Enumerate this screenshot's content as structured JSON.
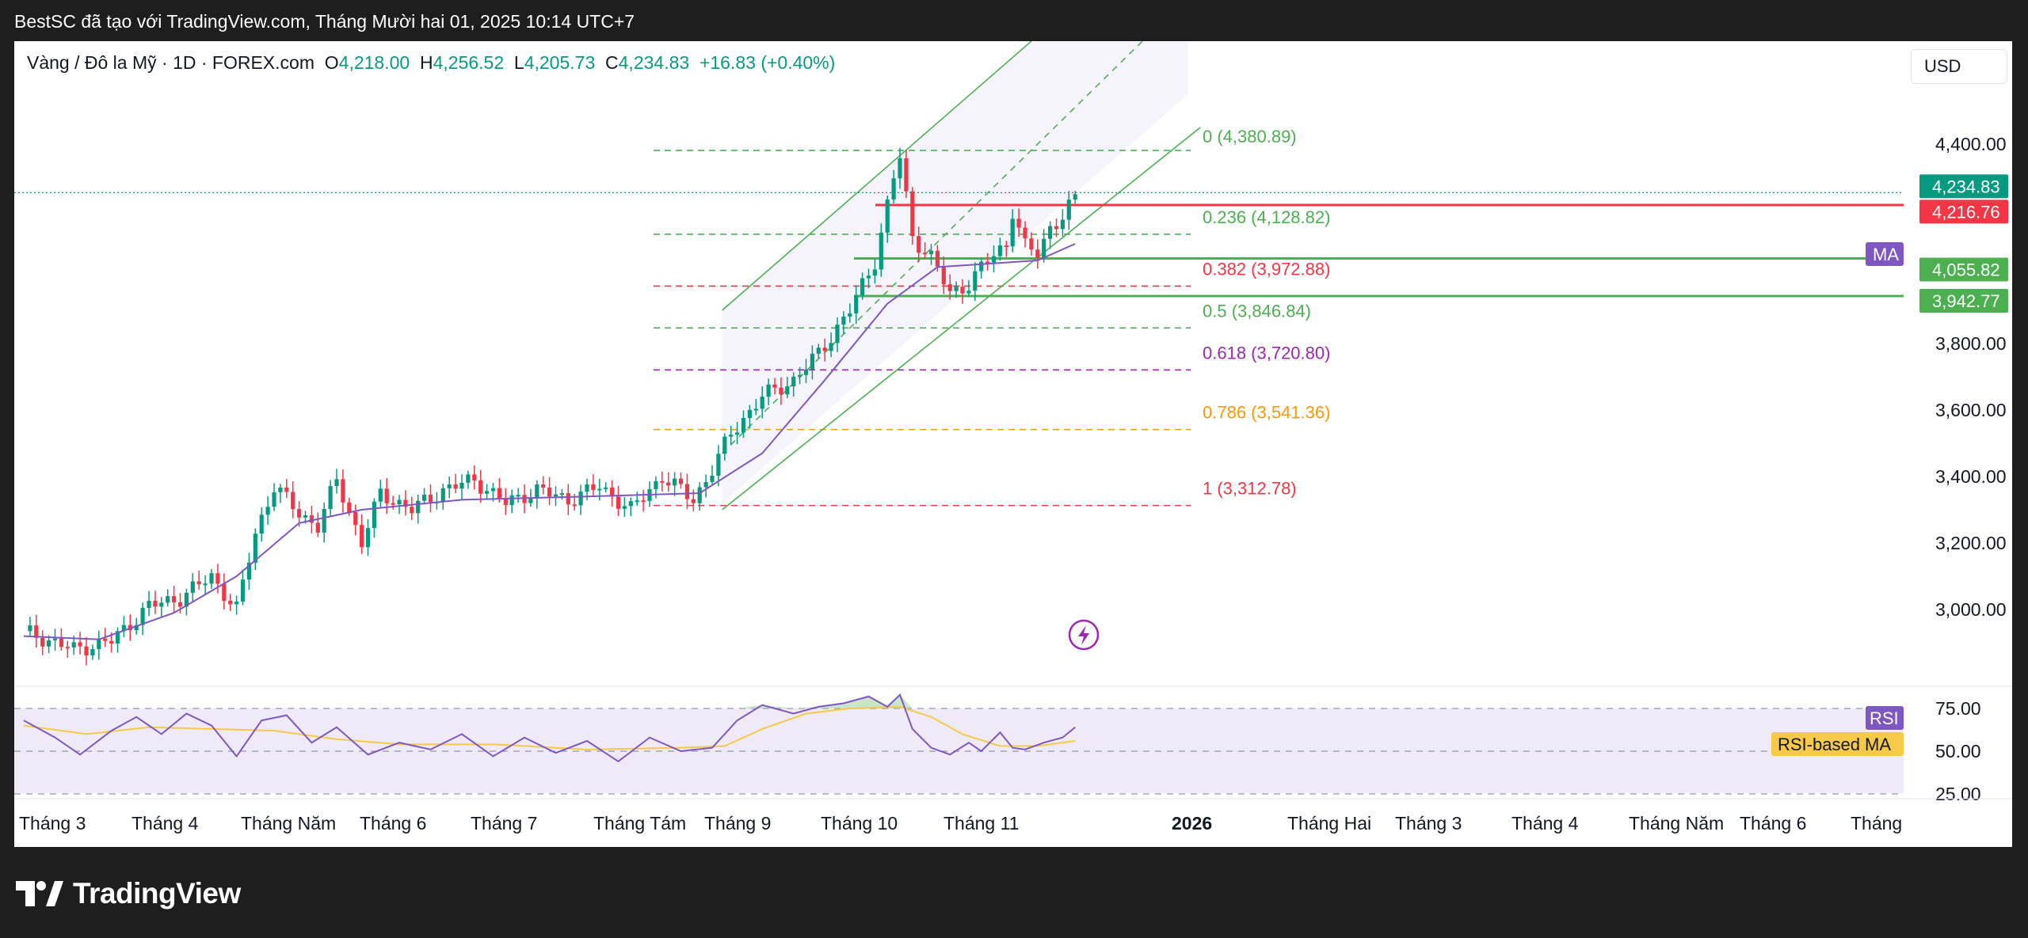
{
  "header": {
    "attribution": "BestSC đã tạo với TradingView.com, Tháng Mười hai 01, 2025 10:14 UTC+7"
  },
  "legend": {
    "symbol": "Vàng / Đô la Mỹ · 1D · FOREX.com",
    "open_label": "O",
    "open": "4,218.00",
    "high_label": "H",
    "high": "4,256.52",
    "low_label": "L",
    "low": "4,205.73",
    "close_label": "C",
    "close": "4,234.83",
    "change": "+16.83 (+0.40%)"
  },
  "currency": "USD",
  "footer": {
    "brand": "TradingView"
  },
  "colors": {
    "up": "#089981",
    "down": "#f23645",
    "ma": "#7e57c2",
    "rsi": "#7e57c2",
    "rsi_ma": "#f7c948",
    "fib_green": "#4caf50",
    "fib_red": "#f23645",
    "fib_purple": "#9c27b0",
    "fib_orange": "#ff9800",
    "channel": "#4caf50"
  },
  "chart_data": {
    "type": "candlestick",
    "symbol": "XAUUSD",
    "timeframe": "1D",
    "ylim": [
      2800,
      4560
    ],
    "y_ticks": [
      "4,400.00",
      "3,800.00",
      "3,600.00",
      "3,400.00",
      "3,200.00",
      "3,000.00"
    ],
    "x_ticks": [
      "Tháng 3",
      "Tháng 4",
      "Tháng Năm",
      "Tháng 6",
      "Tháng 7",
      "Tháng Tám",
      "Tháng 9",
      "Tháng 10",
      "Tháng 11",
      "2026",
      "Tháng Hai",
      "Tháng 3",
      "Tháng 4",
      "Tháng Năm",
      "Tháng 6",
      "Tháng"
    ],
    "price_path": [
      {
        "t": 0,
        "p": 2935
      },
      {
        "t": 8,
        "p": 2880
      },
      {
        "t": 14,
        "p": 2905
      },
      {
        "t": 20,
        "p": 3010
      },
      {
        "t": 25,
        "p": 3035
      },
      {
        "t": 30,
        "p": 3100
      },
      {
        "t": 34,
        "p": 3000
      },
      {
        "t": 37,
        "p": 3230
      },
      {
        "t": 40,
        "p": 3370
      },
      {
        "t": 44,
        "p": 3290
      },
      {
        "t": 47,
        "p": 3250
      },
      {
        "t": 50,
        "p": 3390
      },
      {
        "t": 54,
        "p": 3200
      },
      {
        "t": 57,
        "p": 3350
      },
      {
        "t": 62,
        "p": 3300
      },
      {
        "t": 67,
        "p": 3360
      },
      {
        "t": 72,
        "p": 3390
      },
      {
        "t": 77,
        "p": 3320
      },
      {
        "t": 82,
        "p": 3360
      },
      {
        "t": 87,
        "p": 3330
      },
      {
        "t": 92,
        "p": 3370
      },
      {
        "t": 97,
        "p": 3300
      },
      {
        "t": 102,
        "p": 3400
      },
      {
        "t": 107,
        "p": 3330
      },
      {
        "t": 110,
        "p": 3420
      },
      {
        "t": 113,
        "p": 3530
      },
      {
        "t": 118,
        "p": 3640
      },
      {
        "t": 123,
        "p": 3690
      },
      {
        "t": 127,
        "p": 3770
      },
      {
        "t": 132,
        "p": 3900
      },
      {
        "t": 136,
        "p": 4050
      },
      {
        "t": 139,
        "p": 4300
      },
      {
        "t": 140,
        "p": 4360
      },
      {
        "t": 142,
        "p": 4120
      },
      {
        "t": 145,
        "p": 4060
      },
      {
        "t": 148,
        "p": 3950
      },
      {
        "t": 151,
        "p": 3980
      },
      {
        "t": 154,
        "p": 4050
      },
      {
        "t": 157,
        "p": 4100
      },
      {
        "t": 158,
        "p": 4200
      },
      {
        "t": 160,
        "p": 4090
      },
      {
        "t": 162,
        "p": 4070
      },
      {
        "t": 164,
        "p": 4150
      },
      {
        "t": 166,
        "p": 4180
      },
      {
        "t": 168,
        "p": 4234.83
      }
    ],
    "moving_average": {
      "name": "MA",
      "values": [
        {
          "t": 0,
          "p": 2920
        },
        {
          "t": 12,
          "p": 2910
        },
        {
          "t": 24,
          "p": 2990
        },
        {
          "t": 34,
          "p": 3100
        },
        {
          "t": 44,
          "p": 3260
        },
        {
          "t": 54,
          "p": 3300
        },
        {
          "t": 70,
          "p": 3330
        },
        {
          "t": 90,
          "p": 3340
        },
        {
          "t": 108,
          "p": 3350
        },
        {
          "t": 118,
          "p": 3470
        },
        {
          "t": 128,
          "p": 3690
        },
        {
          "t": 138,
          "p": 3920
        },
        {
          "t": 146,
          "p": 4030
        },
        {
          "t": 154,
          "p": 4040
        },
        {
          "t": 162,
          "p": 4050
        },
        {
          "t": 168,
          "p": 4100
        }
      ]
    },
    "fibonacci": [
      {
        "level": "0",
        "price": 4380.89,
        "label": "0 (4,380.89)"
      },
      {
        "level": "0.236",
        "price": 4128.82,
        "label": "0.236 (4,128.82)"
      },
      {
        "level": "0.382",
        "price": 3972.88,
        "label": "0.382 (3,972.88)"
      },
      {
        "level": "0.5",
        "price": 3846.84,
        "label": "0.5 (3,846.84)"
      },
      {
        "level": "0.618",
        "price": 3720.8,
        "label": "0.618 (3,720.80)"
      },
      {
        "level": "0.786",
        "price": 3541.36,
        "label": "0.786 (3,541.36)"
      },
      {
        "level": "1",
        "price": 3312.78,
        "label": "1 (3,312.78)"
      }
    ],
    "horizontal_levels": [
      {
        "price": 4216.76,
        "label": "4,216.76",
        "color": "red"
      },
      {
        "price": 4055.82,
        "label": "4,055.82",
        "color": "green"
      },
      {
        "price": 3942.77,
        "label": "3,942.77",
        "color": "green"
      }
    ],
    "last_price_label": "4,234.83",
    "rsi": {
      "name": "RSI",
      "ma_name": "RSI-based MA",
      "ticks": [
        "75.00",
        "50.00",
        "25.00"
      ],
      "ylim": [
        25,
        90
      ],
      "values": [
        {
          "t": 0,
          "v": 68
        },
        {
          "t": 5,
          "v": 58
        },
        {
          "t": 9,
          "v": 48
        },
        {
          "t": 14,
          "v": 62
        },
        {
          "t": 18,
          "v": 70
        },
        {
          "t": 22,
          "v": 60
        },
        {
          "t": 26,
          "v": 72
        },
        {
          "t": 30,
          "v": 65
        },
        {
          "t": 34,
          "v": 47
        },
        {
          "t": 38,
          "v": 68
        },
        {
          "t": 42,
          "v": 71
        },
        {
          "t": 46,
          "v": 55
        },
        {
          "t": 50,
          "v": 64
        },
        {
          "t": 55,
          "v": 48
        },
        {
          "t": 60,
          "v": 55
        },
        {
          "t": 65,
          "v": 51
        },
        {
          "t": 70,
          "v": 60
        },
        {
          "t": 75,
          "v": 47
        },
        {
          "t": 80,
          "v": 58
        },
        {
          "t": 85,
          "v": 49
        },
        {
          "t": 90,
          "v": 56
        },
        {
          "t": 95,
          "v": 44
        },
        {
          "t": 100,
          "v": 58
        },
        {
          "t": 105,
          "v": 50
        },
        {
          "t": 110,
          "v": 52
        },
        {
          "t": 114,
          "v": 68
        },
        {
          "t": 118,
          "v": 77
        },
        {
          "t": 123,
          "v": 72
        },
        {
          "t": 127,
          "v": 76
        },
        {
          "t": 131,
          "v": 78
        },
        {
          "t": 135,
          "v": 82
        },
        {
          "t": 138,
          "v": 76
        },
        {
          "t": 140,
          "v": 83
        },
        {
          "t": 142,
          "v": 63
        },
        {
          "t": 145,
          "v": 52
        },
        {
          "t": 148,
          "v": 48
        },
        {
          "t": 151,
          "v": 55
        },
        {
          "t": 153,
          "v": 50
        },
        {
          "t": 156,
          "v": 61
        },
        {
          "t": 158,
          "v": 52
        },
        {
          "t": 160,
          "v": 51
        },
        {
          "t": 163,
          "v": 55
        },
        {
          "t": 166,
          "v": 58
        },
        {
          "t": 168,
          "v": 64
        }
      ],
      "ma_values": [
        {
          "t": 0,
          "v": 65
        },
        {
          "t": 10,
          "v": 60
        },
        {
          "t": 20,
          "v": 64
        },
        {
          "t": 30,
          "v": 63
        },
        {
          "t": 40,
          "v": 62
        },
        {
          "t": 50,
          "v": 57
        },
        {
          "t": 60,
          "v": 54
        },
        {
          "t": 75,
          "v": 54
        },
        {
          "t": 90,
          "v": 51
        },
        {
          "t": 105,
          "v": 52
        },
        {
          "t": 112,
          "v": 53
        },
        {
          "t": 118,
          "v": 63
        },
        {
          "t": 125,
          "v": 72
        },
        {
          "t": 132,
          "v": 75
        },
        {
          "t": 140,
          "v": 76
        },
        {
          "t": 145,
          "v": 70
        },
        {
          "t": 150,
          "v": 60
        },
        {
          "t": 156,
          "v": 53
        },
        {
          "t": 162,
          "v": 53
        },
        {
          "t": 168,
          "v": 56
        }
      ]
    }
  }
}
